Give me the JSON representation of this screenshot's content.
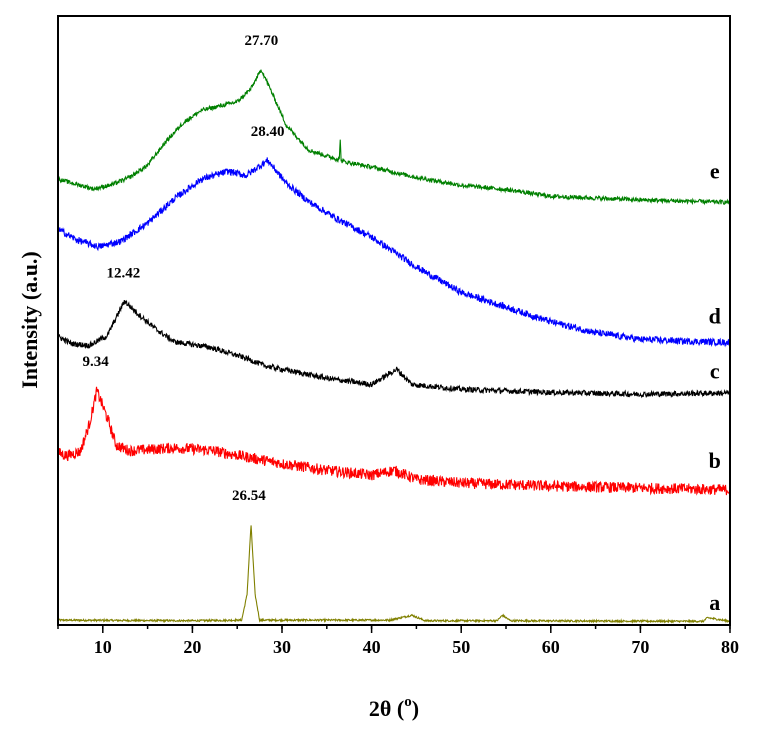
{
  "chart_data": {
    "type": "line",
    "title": "",
    "xlabel": "2θ (",
    "xlabel_sup": "o",
    "xlabel_close": ")",
    "ylabel": "Intensity (a.u.)",
    "xlim": [
      5,
      80
    ],
    "ylim": [
      0,
      100
    ],
    "x_ticks": [
      10,
      20,
      30,
      40,
      50,
      60,
      70,
      80
    ],
    "x_tick_labels": [
      "10",
      "20",
      "30",
      "40",
      "50",
      "60",
      "70",
      "80"
    ],
    "y_tick_labels": [],
    "grid": false,
    "legend": "none",
    "series": [
      {
        "name": "a",
        "color": "#808000",
        "noise": 0.15,
        "points": [
          [
            5,
            0.8
          ],
          [
            20,
            0.7
          ],
          [
            25.5,
            0.8
          ],
          [
            26.1,
            5
          ],
          [
            26.54,
            16.5
          ],
          [
            27.0,
            5
          ],
          [
            27.5,
            0.8
          ],
          [
            42,
            0.8
          ],
          [
            44.5,
            1.6
          ],
          [
            46,
            0.7
          ],
          [
            54,
            0.7
          ],
          [
            54.6,
            1.6
          ],
          [
            55.5,
            0.7
          ],
          [
            77,
            0.6
          ],
          [
            77.5,
            1.2
          ],
          [
            80,
            0.6
          ]
        ],
        "label_x": 78.3,
        "label_y": 2.5
      },
      {
        "name": "b",
        "color": "#ff0000",
        "noise": 0.9,
        "points": [
          [
            5,
            28.3
          ],
          [
            6,
            27.8
          ],
          [
            7.5,
            28.5
          ],
          [
            8.5,
            33
          ],
          [
            9.34,
            38.5
          ],
          [
            10.5,
            34
          ],
          [
            11.5,
            29.5
          ],
          [
            13,
            28.6
          ],
          [
            18,
            29.1
          ],
          [
            22,
            28.7
          ],
          [
            26,
            27.6
          ],
          [
            30,
            26.5
          ],
          [
            35,
            25.4
          ],
          [
            40,
            24.6
          ],
          [
            42.5,
            25.4
          ],
          [
            45,
            23.9
          ],
          [
            50,
            23.3
          ],
          [
            60,
            22.8
          ],
          [
            70,
            22.5
          ],
          [
            80,
            22.2
          ]
        ],
        "label_x": 78.3,
        "label_y": 25.8
      },
      {
        "name": "c",
        "color": "#000000",
        "noise": 0.45,
        "points": [
          [
            5,
            47.4
          ],
          [
            6.5,
            46.2
          ],
          [
            8.5,
            45.9
          ],
          [
            10.5,
            47.5
          ],
          [
            12.42,
            53.2
          ],
          [
            14,
            51
          ],
          [
            16,
            48.5
          ],
          [
            18,
            46.5
          ],
          [
            22,
            45.6
          ],
          [
            26,
            43.8
          ],
          [
            28,
            42.6
          ],
          [
            35,
            40.5
          ],
          [
            40,
            39.5
          ],
          [
            42.8,
            42
          ],
          [
            44.5,
            39.5
          ],
          [
            50,
            38.7
          ],
          [
            60,
            38.2
          ],
          [
            70,
            37.9
          ],
          [
            80,
            38.1
          ]
        ],
        "label_x": 78.3,
        "label_y": 40.5
      },
      {
        "name": "d",
        "color": "#0000ff",
        "noise": 0.55,
        "points": [
          [
            5,
            65
          ],
          [
            7,
            63.3
          ],
          [
            9.5,
            62.1
          ],
          [
            12,
            63
          ],
          [
            15,
            66
          ],
          [
            18,
            70
          ],
          [
            21,
            73.2
          ],
          [
            24,
            74.5
          ],
          [
            26,
            73.8
          ],
          [
            28.4,
            76.3
          ],
          [
            30.5,
            72.5
          ],
          [
            33,
            69.5
          ],
          [
            36,
            66.8
          ],
          [
            40,
            63.7
          ],
          [
            45,
            58.8
          ],
          [
            50,
            54.6
          ],
          [
            55,
            52.2
          ],
          [
            60,
            49.8
          ],
          [
            65,
            48
          ],
          [
            70,
            46.9
          ],
          [
            75,
            46.6
          ],
          [
            80,
            46.4
          ]
        ],
        "label_x": 78.3,
        "label_y": 49.5
      },
      {
        "name": "e",
        "color": "#008000",
        "noise": 0.35,
        "points": [
          [
            5,
            73.2
          ],
          [
            7,
            72.4
          ],
          [
            9,
            71.6
          ],
          [
            11,
            72.3
          ],
          [
            13,
            73.5
          ],
          [
            15,
            75.5
          ],
          [
            17,
            79.3
          ],
          [
            19,
            82.5
          ],
          [
            21,
            84.5
          ],
          [
            23,
            85.2
          ],
          [
            25,
            85.9
          ],
          [
            26.5,
            88
          ],
          [
            27.7,
            91.2
          ],
          [
            29,
            87
          ],
          [
            30.5,
            82
          ],
          [
            33,
            78
          ],
          [
            35,
            77
          ],
          [
            36.4,
            76.4
          ],
          [
            36.5,
            80
          ],
          [
            36.6,
            76.2
          ],
          [
            40,
            75.2
          ],
          [
            45,
            73.5
          ],
          [
            50,
            72.2
          ],
          [
            55,
            71.5
          ],
          [
            60,
            70.4
          ],
          [
            70,
            69.8
          ],
          [
            80,
            69.4
          ]
        ],
        "label_x": 78.3,
        "label_y": 73.3
      }
    ],
    "annotations": [
      {
        "text": "27.70",
        "x": 27.7,
        "y": 95.2
      },
      {
        "text": "28.40",
        "x": 28.4,
        "y": 80.3
      },
      {
        "text": "12.42",
        "x": 12.3,
        "y": 57.1
      },
      {
        "text": "9.34",
        "x": 9.2,
        "y": 42.5
      },
      {
        "text": "26.54",
        "x": 26.3,
        "y": 20.5
      }
    ]
  }
}
